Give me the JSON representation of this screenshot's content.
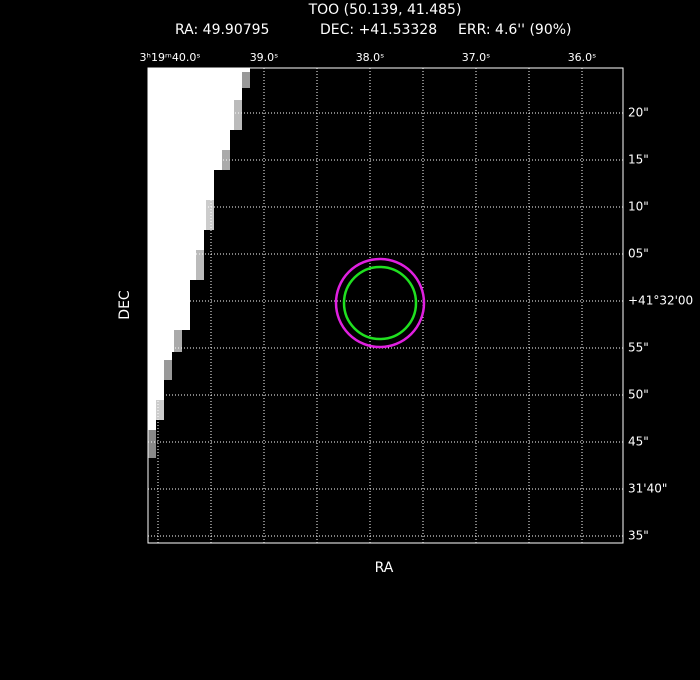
{
  "header": {
    "title": "TOO (50.139, 41.485)",
    "ra": "RA: 49.90795",
    "dec": "DEC: +41.53328",
    "err": "ERR: 4.6'' (90%)"
  },
  "axes": {
    "x_label": "RA",
    "y_label": "DEC",
    "top_ticks": [
      "3ʰ19ᵐ40.0ˢ",
      "39.0ˢ",
      "38.0ˢ",
      "37.0ˢ",
      "36.0ˢ"
    ],
    "right_ticks": [
      "20\"",
      "15\"",
      "10\"",
      "05\"",
      "+41°32'00",
      "55\"",
      "50\"",
      "45\"",
      "31'40\"",
      "35\""
    ]
  }
}
